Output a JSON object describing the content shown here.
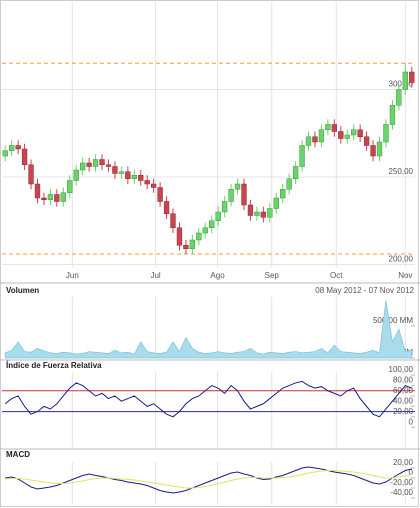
{
  "chart_data": [
    {
      "type": "candlestick",
      "open": [
        262,
        265,
        268,
        266,
        257,
        246,
        238,
        237,
        240,
        236,
        241,
        248,
        254,
        258,
        256,
        260,
        257,
        256,
        252,
        253,
        249,
        251,
        248,
        246,
        244,
        236,
        229,
        221,
        211,
        209,
        214,
        218,
        221,
        225,
        230,
        236,
        243,
        246,
        234,
        228,
        230,
        227,
        232,
        238,
        243,
        249,
        256,
        268,
        273,
        270,
        277,
        280,
        276,
        272,
        274,
        277,
        273,
        268,
        262,
        270,
        280,
        291,
        300,
        310
      ],
      "high": [
        268,
        271,
        271,
        269,
        260,
        249,
        241,
        243,
        243,
        244,
        251,
        257,
        261,
        261,
        263,
        263,
        260,
        259,
        256,
        256,
        254,
        254,
        251,
        249,
        247,
        239,
        232,
        224,
        214,
        217,
        221,
        224,
        228,
        233,
        239,
        246,
        249,
        249,
        237,
        233,
        233,
        235,
        241,
        246,
        252,
        259,
        271,
        276,
        276,
        280,
        283,
        283,
        279,
        277,
        280,
        280,
        276,
        271,
        273,
        283,
        294,
        303,
        315,
        313
      ],
      "low": [
        259,
        262,
        263,
        254,
        243,
        235,
        234,
        234,
        233,
        233,
        238,
        245,
        251,
        253,
        253,
        254,
        253,
        249,
        249,
        246,
        246,
        245,
        243,
        241,
        233,
        226,
        218,
        208,
        206,
        206,
        211,
        215,
        218,
        222,
        227,
        233,
        240,
        231,
        225,
        225,
        224,
        224,
        229,
        235,
        240,
        246,
        253,
        265,
        267,
        267,
        274,
        273,
        269,
        269,
        271,
        270,
        265,
        259,
        259,
        267,
        277,
        288,
        297,
        301
      ],
      "close": [
        265,
        268,
        266,
        257,
        246,
        238,
        237,
        240,
        236,
        241,
        248,
        254,
        258,
        256,
        260,
        257,
        256,
        252,
        253,
        249,
        251,
        248,
        246,
        244,
        236,
        229,
        221,
        211,
        209,
        214,
        218,
        221,
        225,
        230,
        236,
        243,
        246,
        234,
        228,
        230,
        227,
        232,
        238,
        243,
        249,
        256,
        268,
        273,
        270,
        277,
        280,
        276,
        272,
        274,
        277,
        273,
        268,
        262,
        270,
        280,
        291,
        300,
        310,
        304
      ],
      "up_color": "#6ad36a",
      "down_color": "#c9444f",
      "reference_lines": [
        {
          "value": 315,
          "color": "#f0a030"
        },
        {
          "value": 206,
          "color": "#f0a030"
        }
      ],
      "xlim": [
        -0.5,
        63.5
      ],
      "xticks": [
        {
          "value": 10.4,
          "label": "Jun"
        },
        {
          "value": 23.3,
          "label": "Jul"
        },
        {
          "value": 32.9,
          "label": "Ago"
        },
        {
          "value": 41.3,
          "label": "Sep"
        },
        {
          "value": 51.3,
          "label": "Oct"
        },
        {
          "value": 62,
          "label": "Nov"
        }
      ],
      "ylim": [
        198,
        350
      ],
      "yticks": [
        {
          "value": 200,
          "label": "200,00"
        },
        {
          "value": 250,
          "label": "250,00"
        },
        {
          "value": 300,
          "label": "300,00"
        }
      ],
      "grid": true
    },
    {
      "type": "area",
      "title": "Volumen",
      "subtitle": "08 May 2012 - 07 Nov 2012",
      "color": "#a8dcec",
      "values": [
        80,
        120,
        250,
        100,
        90,
        150,
        110,
        80,
        70,
        90,
        80,
        60,
        70,
        100,
        90,
        80,
        70,
        120,
        80,
        90,
        60,
        250,
        100,
        80,
        70,
        90,
        250,
        100,
        320,
        150,
        90,
        70,
        80,
        100,
        80,
        70,
        90,
        100,
        150,
        80,
        60,
        90,
        80,
        70,
        90,
        100,
        80,
        90,
        100,
        150,
        80,
        200,
        100,
        90,
        80,
        70,
        90,
        120,
        80,
        900,
        250,
        450,
        100,
        120
      ],
      "ylim": [
        0,
        950
      ],
      "yticks": [
        {
          "value": 0,
          "label": "0 MM"
        },
        {
          "value": 500,
          "label": "500,00 MM"
        }
      ]
    },
    {
      "type": "line",
      "title": "Índice de Fuerza Relativa",
      "series": [
        {
          "color": "#1a1a8c",
          "values": [
            45,
            55,
            60,
            40,
            25,
            30,
            40,
            35,
            45,
            60,
            75,
            85,
            80,
            70,
            60,
            65,
            55,
            60,
            50,
            55,
            60,
            50,
            40,
            45,
            35,
            25,
            20,
            30,
            45,
            55,
            60,
            70,
            80,
            75,
            65,
            80,
            70,
            50,
            35,
            40,
            45,
            55,
            65,
            75,
            80,
            85,
            88,
            80,
            75,
            78,
            70,
            65,
            60,
            70,
            75,
            55,
            40,
            25,
            20,
            35,
            50,
            65,
            80,
            75
          ]
        }
      ],
      "reference_lines": [
        {
          "value": 70,
          "color": "#c83232"
        },
        {
          "value": 30,
          "color": "#2828a0"
        }
      ],
      "ylim": [
        -38,
        106
      ],
      "yticks": [
        0,
        {
          "value": 20,
          "label": "20,00"
        },
        {
          "value": 40,
          "label": "40,00"
        },
        {
          "value": 60,
          "label": "60,00"
        },
        {
          "value": 80,
          "label": "80,00"
        },
        {
          "value": 100,
          "label": "100,00"
        }
      ]
    },
    {
      "type": "line",
      "title": "MACD",
      "series": [
        {
          "color": "#1a1a8c",
          "values": [
            0,
            2,
            -2,
            -10,
            -18,
            -22,
            -20,
            -18,
            -15,
            -10,
            -5,
            0,
            5,
            8,
            5,
            3,
            0,
            -3,
            -5,
            -8,
            -10,
            -12,
            -15,
            -20,
            -25,
            -28,
            -30,
            -28,
            -25,
            -20,
            -15,
            -10,
            -5,
            0,
            5,
            10,
            12,
            8,
            5,
            0,
            -3,
            -2,
            2,
            5,
            10,
            15,
            20,
            22,
            20,
            18,
            15,
            12,
            10,
            8,
            5,
            0,
            -5,
            -10,
            -12,
            -8,
            0,
            8,
            15,
            18
          ]
        },
        {
          "color": "#e8e060",
          "values": [
            -2,
            -1,
            -1,
            -2,
            -4,
            -6,
            -8,
            -10,
            -11,
            -11,
            -10,
            -8,
            -6,
            -3,
            -1,
            0,
            0,
            -1,
            -2,
            -3,
            -4,
            -6,
            -8,
            -10,
            -12,
            -14,
            -16,
            -18,
            -20,
            -20,
            -19,
            -17,
            -14,
            -11,
            -8,
            -5,
            -2,
            0,
            1,
            1,
            0,
            0,
            0,
            1,
            2,
            4,
            7,
            10,
            12,
            14,
            15,
            15,
            14,
            13,
            12,
            10,
            8,
            5,
            2,
            0,
            0,
            2,
            4,
            7
          ]
        }
      ],
      "ylim": [
        -54,
        32
      ],
      "yticks": [
        {
          "value": -40,
          "label": "-40,00"
        },
        {
          "value": -20,
          "label": "-20,00"
        },
        0,
        {
          "value": 20,
          "label": "20,00"
        }
      ]
    }
  ]
}
